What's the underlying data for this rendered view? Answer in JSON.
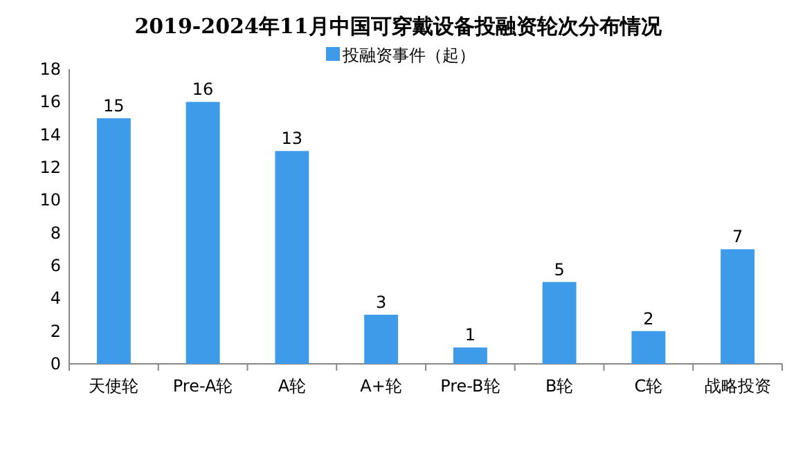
{
  "chart_data": {
    "type": "bar",
    "title": "2019-2024年11月中国可穿戴设备投融资轮次分布情况",
    "categories": [
      "天使轮",
      "Pre-A轮",
      "A轮",
      "A+轮",
      "Pre-B轮",
      "B轮",
      "C轮",
      "战略投资"
    ],
    "series": [
      {
        "name": "投融资事件（起）",
        "color": "#3d9be9",
        "values": [
          15,
          16,
          13,
          3,
          1,
          5,
          2,
          7
        ]
      }
    ],
    "ylim": [
      0,
      18
    ],
    "yticks": [
      0,
      2,
      4,
      6,
      8,
      10,
      12,
      14,
      16,
      18
    ],
    "data_labels": true,
    "legend": "top",
    "grid": false
  }
}
